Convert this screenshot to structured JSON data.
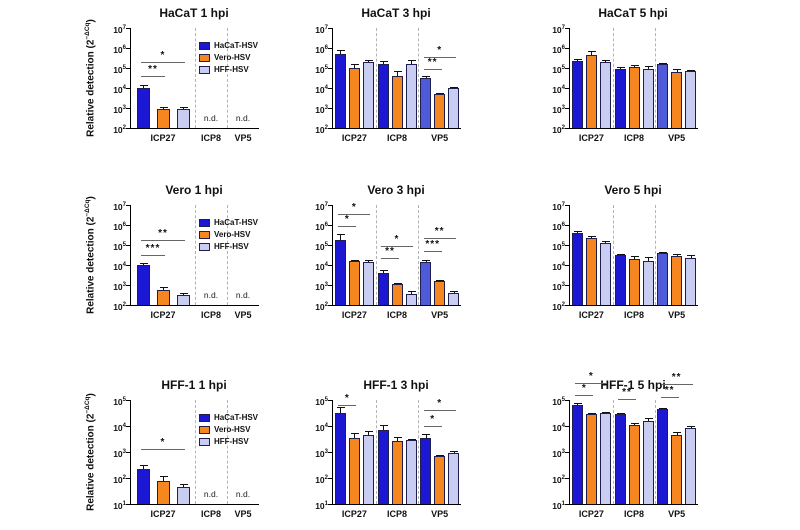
{
  "chart_data": {
    "type": "bar",
    "yscale": "log",
    "grid": false,
    "ylabel": {
      "text": "Relative detection (2",
      "sup": "−ΔCq",
      "close": ")"
    },
    "nd_label": "n.d.",
    "categories": [
      "ICP27",
      "ICP8",
      "VP5"
    ],
    "series": [
      {
        "name": "HaCaT-HSV",
        "color": "#1b17d3"
      },
      {
        "name": "Vero-HSV",
        "color": "#f6861f"
      },
      {
        "name": "HFF-HSV",
        "color": "#c9cdf2"
      }
    ],
    "alt_blue_color": "#4f5ad8",
    "bar_border_color": "#1f1f4f",
    "sig_line_color": "#666666",
    "legend_position": "inside-right",
    "charts": [
      {
        "title": "HaCaT 1 hpi",
        "ymin_exp": 2,
        "ymax_exp": 7,
        "ylabel": true,
        "legend": true,
        "groups": [
          {
            "label": "ICP27",
            "bars": [
              {
                "v": 10000,
                "e": 4000
              },
              {
                "v": 900,
                "e": 160
              },
              {
                "v": 850,
                "e": 260
              }
            ],
            "sig": [
              {
                "stars": "**",
                "to": 1,
                "exp": 4.6
              },
              {
                "stars": "*",
                "to": 2,
                "exp": 5.3
              }
            ]
          },
          {
            "label": "ICP8",
            "nd": true
          },
          {
            "label": "VP5",
            "nd": true
          }
        ]
      },
      {
        "title": "HaCaT 3 hpi",
        "ymin_exp": 2,
        "ymax_exp": 7,
        "ylabel": false,
        "legend": false,
        "groups": [
          {
            "label": "ICP27",
            "bars": [
              {
                "v": 500000,
                "e": 300000
              },
              {
                "v": 100000,
                "e": 60000
              },
              {
                "v": 200000,
                "e": 50000
              }
            ]
          },
          {
            "label": "ICP8",
            "bars": [
              {
                "v": 160000,
                "e": 60000
              },
              {
                "v": 40000,
                "e": 28000
              },
              {
                "v": 150000,
                "e": 100000
              }
            ]
          },
          {
            "label": "VP5",
            "alt_blue": true,
            "bars": [
              {
                "v": 30000,
                "e": 12000
              },
              {
                "v": 5000,
                "e": 600
              },
              {
                "v": 10500,
                "e": 1200
              }
            ],
            "sig": [
              {
                "stars": "**",
                "to": 1,
                "exp": 4.95
              },
              {
                "stars": "*",
                "to": 2,
                "exp": 5.55
              }
            ]
          }
        ]
      },
      {
        "title": "HaCaT 5 hpi",
        "ymin_exp": 2,
        "ymax_exp": 7,
        "ylabel": false,
        "legend": false,
        "groups": [
          {
            "label": "ICP27",
            "bars": [
              {
                "v": 220000,
                "e": 60000
              },
              {
                "v": 450000,
                "e": 280000
              },
              {
                "v": 210000,
                "e": 50000
              }
            ]
          },
          {
            "label": "ICP8",
            "bars": [
              {
                "v": 90000,
                "e": 18000
              },
              {
                "v": 110000,
                "e": 25000
              },
              {
                "v": 90000,
                "e": 35000
              }
            ]
          },
          {
            "label": "VP5",
            "alt_blue": true,
            "bars": [
              {
                "v": 150000,
                "e": 30000
              },
              {
                "v": 60000,
                "e": 28000
              },
              {
                "v": 68000,
                "e": 9000
              }
            ]
          }
        ]
      },
      {
        "title": "Vero 1 hpi",
        "ymin_exp": 2,
        "ymax_exp": 7,
        "ylabel": true,
        "legend": true,
        "groups": [
          {
            "label": "ICP27",
            "bars": [
              {
                "v": 10000,
                "e": 2000
              },
              {
                "v": 550,
                "e": 220
              },
              {
                "v": 300,
                "e": 110
              }
            ],
            "sig": [
              {
                "stars": "***",
                "to": 1,
                "exp": 4.5
              },
              {
                "stars": "**",
                "to": 2,
                "exp": 5.25
              }
            ]
          },
          {
            "label": "ICP8",
            "nd": true
          },
          {
            "label": "VP5",
            "nd": true
          }
        ]
      },
      {
        "title": "Vero 3 hpi",
        "ymin_exp": 2,
        "ymax_exp": 7,
        "ylabel": false,
        "legend": false,
        "groups": [
          {
            "label": "ICP27",
            "bars": [
              {
                "v": 180000,
                "e": 160000
              },
              {
                "v": 16000,
                "e": 2500
              },
              {
                "v": 14000,
                "e": 3500
              }
            ],
            "sig": [
              {
                "stars": "*",
                "to": 1,
                "exp": 5.95
              },
              {
                "stars": "*",
                "to": 2,
                "exp": 6.55
              }
            ]
          },
          {
            "label": "ICP8",
            "bars": [
              {
                "v": 4000,
                "e": 1800
              },
              {
                "v": 1100,
                "e": 120
              },
              {
                "v": 350,
                "e": 160
              }
            ],
            "sig": [
              {
                "stars": "**",
                "to": 1,
                "exp": 4.35
              },
              {
                "stars": "*",
                "to": 2,
                "exp": 4.95
              }
            ]
          },
          {
            "label": "VP5",
            "alt_blue": true,
            "bars": [
              {
                "v": 14000,
                "e": 4000
              },
              {
                "v": 1500,
                "e": 180
              },
              {
                "v": 400,
                "e": 120
              }
            ],
            "sig": [
              {
                "stars": "***",
                "to": 1,
                "exp": 4.7
              },
              {
                "stars": "**",
                "to": 2,
                "exp": 5.35
              }
            ]
          }
        ]
      },
      {
        "title": "Vero 5 hpi",
        "ymin_exp": 2,
        "ymax_exp": 7,
        "ylabel": false,
        "legend": false,
        "groups": [
          {
            "label": "ICP27",
            "bars": [
              {
                "v": 400000,
                "e": 120000
              },
              {
                "v": 230000,
                "e": 40000
              },
              {
                "v": 130000,
                "e": 35000
              }
            ]
          },
          {
            "label": "ICP8",
            "bars": [
              {
                "v": 33000,
                "e": 4000
              },
              {
                "v": 20000,
                "e": 9000
              },
              {
                "v": 15000,
                "e": 9000
              }
            ]
          },
          {
            "label": "VP5",
            "alt_blue": true,
            "bars": [
              {
                "v": 42000,
                "e": 4000
              },
              {
                "v": 28000,
                "e": 8000
              },
              {
                "v": 23000,
                "e": 10000
              }
            ]
          }
        ]
      },
      {
        "title": "HFF-1 1 hpi",
        "ymin_exp": 1,
        "ymax_exp": 5,
        "ylabel": true,
        "legend": true,
        "groups": [
          {
            "label": "ICP27",
            "bars": [
              {
                "v": 220,
                "e": 110
              },
              {
                "v": 80,
                "e": 35
              },
              {
                "v": 45,
                "e": 16
              }
            ],
            "sig": [
              {
                "stars": "*",
                "to": 2,
                "exp": 3.1
              }
            ]
          },
          {
            "label": "ICP8",
            "nd": true
          },
          {
            "label": "VP5",
            "nd": true
          }
        ]
      },
      {
        "title": "HFF-1 3 hpi",
        "ymin_exp": 1,
        "ymax_exp": 5,
        "ylabel": false,
        "legend": false,
        "groups": [
          {
            "label": "ICP27",
            "bars": [
              {
                "v": 33000,
                "e": 22000
              },
              {
                "v": 3600,
                "e": 2000
              },
              {
                "v": 4600,
                "e": 1600
              }
            ],
            "sig": [
              {
                "stars": "*",
                "to": 1,
                "exp": 4.8
              }
            ]
          },
          {
            "label": "ICP8",
            "bars": [
              {
                "v": 7000,
                "e": 3500
              },
              {
                "v": 2600,
                "e": 1300
              },
              {
                "v": 2900,
                "e": 350
              }
            ]
          },
          {
            "label": "VP5",
            "bars": [
              {
                "v": 3600,
                "e": 1400
              },
              {
                "v": 700,
                "e": 90
              },
              {
                "v": 950,
                "e": 120
              }
            ],
            "sig": [
              {
                "stars": "*",
                "to": 1,
                "exp": 4.0
              },
              {
                "stars": "*",
                "to": 2,
                "exp": 4.6
              }
            ]
          }
        ]
      },
      {
        "title": "HFF-1 5 hpi",
        "ymin_exp": 1,
        "ymax_exp": 5,
        "ylabel": false,
        "legend": false,
        "groups": [
          {
            "label": "ICP27",
            "bars": [
              {
                "v": 65000,
                "e": 12000
              },
              {
                "v": 28000,
                "e": 3000
              },
              {
                "v": 32000,
                "e": 2500
              }
            ],
            "sig": [
              {
                "stars": "*",
                "to": 1,
                "exp": 5.2
              },
              {
                "stars": "*",
                "to": 2,
                "exp": 5.65
              }
            ]
          },
          {
            "label": "ICP8",
            "bars": [
              {
                "v": 30000,
                "e": 2500
              },
              {
                "v": 11000,
                "e": 1800
              },
              {
                "v": 15000,
                "e": 4500
              }
            ],
            "sig": [
              {
                "stars": "**",
                "to": 1,
                "exp": 5.05
              }
            ]
          },
          {
            "label": "VP5",
            "bars": [
              {
                "v": 45000,
                "e": 6000
              },
              {
                "v": 4500,
                "e": 1600
              },
              {
                "v": 8500,
                "e": 1500
              }
            ],
            "sig": [
              {
                "stars": "**",
                "to": 1,
                "exp": 5.1
              },
              {
                "stars": "**",
                "to": 2,
                "exp": 5.6
              }
            ]
          }
        ]
      }
    ]
  }
}
